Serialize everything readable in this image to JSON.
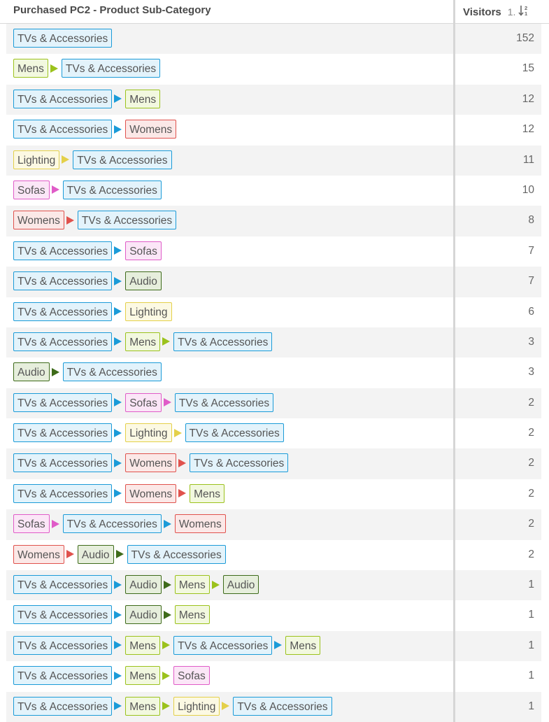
{
  "header": {
    "dimension_title": "Purchased PC2 - Product Sub-Category",
    "metric_title": "Visitors",
    "sort_index": "1."
  },
  "categories": {
    "TVs & Accessories": {
      "border": "#1b9bd8",
      "bg": "#e3f3fb",
      "arrow": "#1b9bd8"
    },
    "Mens": {
      "border": "#9bc21c",
      "bg": "#f2f8df",
      "arrow": "#9bc21c"
    },
    "Womens": {
      "border": "#e0524d",
      "bg": "#fbe8e7",
      "arrow": "#e0524d"
    },
    "Lighting": {
      "border": "#e4d04a",
      "bg": "#fcf9e3",
      "arrow": "#e4d04a"
    },
    "Sofas": {
      "border": "#e05cc8",
      "bg": "#fbe6f7",
      "arrow": "#e05cc8"
    },
    "Audio": {
      "border": "#3e6b1a",
      "bg": "#e6eedc",
      "arrow": "#3e6b1a"
    }
  },
  "rows": [
    {
      "path": [
        "TVs & Accessories"
      ],
      "visitors": "152"
    },
    {
      "path": [
        "Mens",
        "TVs & Accessories"
      ],
      "visitors": "15"
    },
    {
      "path": [
        "TVs & Accessories",
        "Mens"
      ],
      "visitors": "12"
    },
    {
      "path": [
        "TVs & Accessories",
        "Womens"
      ],
      "visitors": "12"
    },
    {
      "path": [
        "Lighting",
        "TVs & Accessories"
      ],
      "visitors": "11"
    },
    {
      "path": [
        "Sofas",
        "TVs & Accessories"
      ],
      "visitors": "10"
    },
    {
      "path": [
        "Womens",
        "TVs & Accessories"
      ],
      "visitors": "8"
    },
    {
      "path": [
        "TVs & Accessories",
        "Sofas"
      ],
      "visitors": "7"
    },
    {
      "path": [
        "TVs & Accessories",
        "Audio"
      ],
      "visitors": "7"
    },
    {
      "path": [
        "TVs & Accessories",
        "Lighting"
      ],
      "visitors": "6"
    },
    {
      "path": [
        "TVs & Accessories",
        "Mens",
        "TVs & Accessories"
      ],
      "visitors": "3"
    },
    {
      "path": [
        "Audio",
        "TVs & Accessories"
      ],
      "visitors": "3"
    },
    {
      "path": [
        "TVs & Accessories",
        "Sofas",
        "TVs & Accessories"
      ],
      "visitors": "2"
    },
    {
      "path": [
        "TVs & Accessories",
        "Lighting",
        "TVs & Accessories"
      ],
      "visitors": "2"
    },
    {
      "path": [
        "TVs & Accessories",
        "Womens",
        "TVs & Accessories"
      ],
      "visitors": "2"
    },
    {
      "path": [
        "TVs & Accessories",
        "Womens",
        "Mens"
      ],
      "visitors": "2"
    },
    {
      "path": [
        "Sofas",
        "TVs & Accessories",
        "Womens"
      ],
      "visitors": "2"
    },
    {
      "path": [
        "Womens",
        "Audio",
        "TVs & Accessories"
      ],
      "visitors": "2"
    },
    {
      "path": [
        "TVs & Accessories",
        "Audio",
        "Mens",
        "Audio"
      ],
      "visitors": "1"
    },
    {
      "path": [
        "TVs & Accessories",
        "Audio",
        "Mens"
      ],
      "visitors": "1"
    },
    {
      "path": [
        "TVs & Accessories",
        "Mens",
        "TVs & Accessories",
        "Mens"
      ],
      "visitors": "1"
    },
    {
      "path": [
        "TVs & Accessories",
        "Mens",
        "Sofas"
      ],
      "visitors": "1"
    },
    {
      "path": [
        "TVs & Accessories",
        "Mens",
        "Lighting",
        "TVs & Accessories"
      ],
      "visitors": "1"
    }
  ]
}
